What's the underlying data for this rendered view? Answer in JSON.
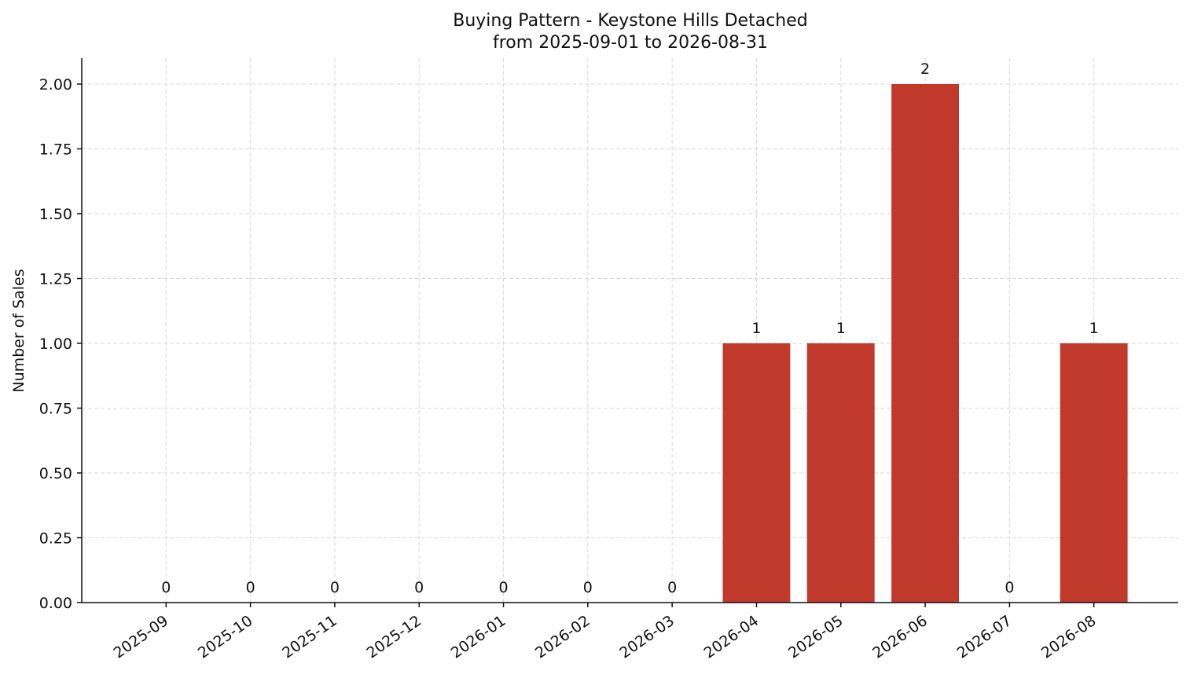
{
  "chart_data": {
    "type": "bar",
    "title": "Buying Pattern - Keystone Hills Detached",
    "subtitle": "from 2025-09-01 to 2026-08-31",
    "y_label": "Number of Sales",
    "categories": [
      "2025-09",
      "2025-10",
      "2025-11",
      "2025-12",
      "2026-01",
      "2026-02",
      "2026-03",
      "2026-04",
      "2026-05",
      "2026-06",
      "2026-07",
      "2026-08"
    ],
    "values": [
      0,
      0,
      0,
      0,
      0,
      0,
      0,
      1,
      1,
      2,
      0,
      1
    ],
    "color": "#c0392b",
    "ylim": [
      0,
      2.1
    ],
    "yticks": [
      {
        "value": 0,
        "label": "0.00"
      },
      {
        "value": 0.25,
        "label": "0.25"
      },
      {
        "value": 0.5,
        "label": "0.50"
      },
      {
        "value": 0.75,
        "label": "0.75"
      },
      {
        "value": 1,
        "label": "1.00"
      },
      {
        "value": 1.25,
        "label": "1.25"
      },
      {
        "value": 1.5,
        "label": "1.50"
      },
      {
        "value": 1.75,
        "label": "1.75"
      },
      {
        "value": 2,
        "label": "2.00"
      }
    ],
    "grid": true
  }
}
